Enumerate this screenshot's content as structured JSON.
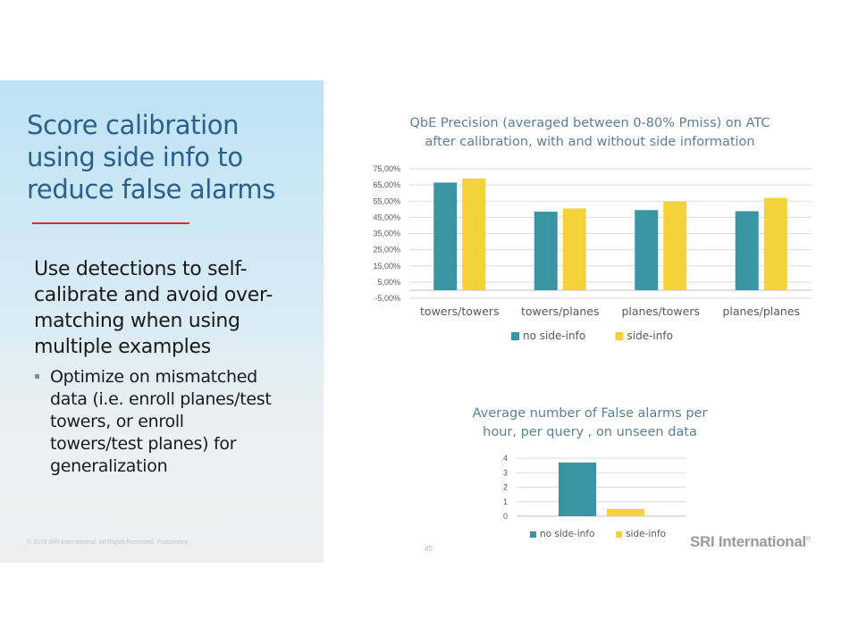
{
  "slide": {
    "title_lines": [
      "Score calibration",
      "using side info to",
      "reduce false alarms"
    ],
    "body_lines": [
      "Use detections to self-",
      "calibrate and avoid over-",
      "matching when using",
      "multiple examples"
    ],
    "bullet_lines": [
      "Optimize on mismatched",
      "data (i.e. enroll planes/test",
      "towers, or enroll",
      "towers/test planes) for",
      "generalization"
    ],
    "copyright": "© 2018 SRI International. All Rights Reserved. Proprietary",
    "page_number": "45",
    "logo": "SRI International",
    "logo_mark": "®"
  },
  "colors": {
    "series1": "#3a95a3",
    "series2": "#f4d33a",
    "title": "#2c5f8a",
    "accent_rule": "#e12b2b"
  },
  "chart_data": [
    {
      "type": "bar",
      "title_lines": [
        "QbE Precision (averaged between 0-80% Pmiss) on ATC",
        "after calibration, with and without side information"
      ],
      "categories": [
        "towers/towers",
        "towers/planes",
        "planes/towers",
        "planes/planes"
      ],
      "series": [
        {
          "name": "no side-info",
          "values": [
            66.5,
            48.5,
            49.5,
            48.8
          ]
        },
        {
          "name": "side-info",
          "values": [
            69.0,
            50.5,
            54.8,
            57.0
          ]
        }
      ],
      "ylim": [
        -5,
        75
      ],
      "yticks": [
        "75,00%",
        "65,00%",
        "55,00%",
        "45,00%",
        "35,00%",
        "25,00%",
        "15,00%",
        "5,00%",
        "-5,00%"
      ],
      "ytick_values": [
        75,
        65,
        55,
        45,
        35,
        25,
        15,
        5,
        -5
      ],
      "grid": true,
      "legend": "bottom"
    },
    {
      "type": "bar",
      "title_lines": [
        "Average number of False alarms per",
        "hour, per query , on unseen data"
      ],
      "categories": [
        ""
      ],
      "series": [
        {
          "name": "no side-info",
          "values": [
            3.7
          ]
        },
        {
          "name": "side-info",
          "values": [
            0.5
          ]
        }
      ],
      "ylim": [
        0,
        4
      ],
      "yticks": [
        "4",
        "3",
        "2",
        "1",
        "0"
      ],
      "ytick_values": [
        4,
        3,
        2,
        1,
        0
      ],
      "grid": true,
      "legend": "bottom"
    }
  ]
}
